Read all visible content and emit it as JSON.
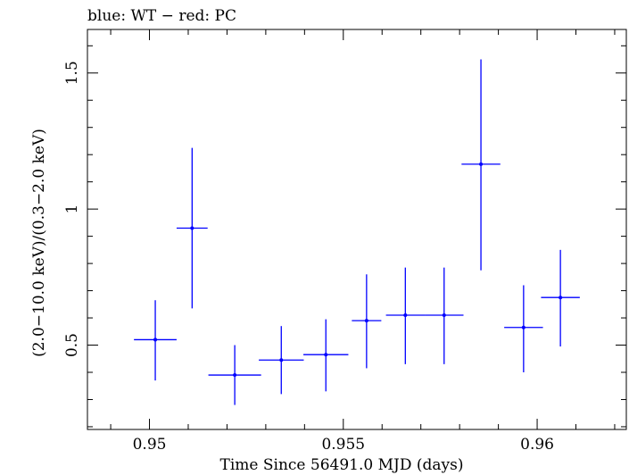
{
  "chart_data": {
    "type": "scatter",
    "title": "blue: WT − red: PC",
    "xlabel": "Time Since 56491.0 MJD (days)",
    "ylabel": "(2.0−10.0 keV)/(0.3−2.0 keV)",
    "xlim": [
      0.9484,
      0.9623
    ],
    "ylim": [
      0.19,
      1.66
    ],
    "x_ticks": [
      {
        "value": 0.95,
        "label": "0.95"
      },
      {
        "value": 0.955,
        "label": "0.955"
      },
      {
        "value": 0.96,
        "label": "0.96"
      }
    ],
    "y_ticks": [
      {
        "value": 0.5,
        "label": "0.5"
      },
      {
        "value": 1,
        "label": "1"
      },
      {
        "value": 1.5,
        "label": "1.5"
      }
    ],
    "series": [
      {
        "name": "WT",
        "color": "#0000ff",
        "points": [
          {
            "x": 0.95015,
            "y": 0.52,
            "xerr": 0.00055,
            "ylo": 0.37,
            "yhi": 0.665
          },
          {
            "x": 0.9511,
            "y": 0.93,
            "xerr": 0.0004,
            "ylo": 0.635,
            "yhi": 1.225
          },
          {
            "x": 0.9522,
            "y": 0.39,
            "xerr": 0.00068,
            "ylo": 0.28,
            "yhi": 0.5
          },
          {
            "x": 0.9534,
            "y": 0.445,
            "xerr": 0.00058,
            "ylo": 0.32,
            "yhi": 0.57
          },
          {
            "x": 0.95455,
            "y": 0.465,
            "xerr": 0.00058,
            "ylo": 0.33,
            "yhi": 0.595
          },
          {
            "x": 0.9556,
            "y": 0.59,
            "xerr": 0.00038,
            "ylo": 0.415,
            "yhi": 0.76
          },
          {
            "x": 0.9566,
            "y": 0.61,
            "xerr": 0.0005,
            "ylo": 0.43,
            "yhi": 0.785
          },
          {
            "x": 0.9576,
            "y": 0.61,
            "xerr": 0.0005,
            "ylo": 0.43,
            "yhi": 0.785
          },
          {
            "x": 0.95855,
            "y": 1.165,
            "xerr": 0.0005,
            "ylo": 0.775,
            "yhi": 1.55
          },
          {
            "x": 0.95965,
            "y": 0.565,
            "xerr": 0.0005,
            "ylo": 0.4,
            "yhi": 0.72
          },
          {
            "x": 0.9606,
            "y": 0.675,
            "xerr": 0.0005,
            "ylo": 0.495,
            "yhi": 0.85
          }
        ]
      }
    ]
  }
}
